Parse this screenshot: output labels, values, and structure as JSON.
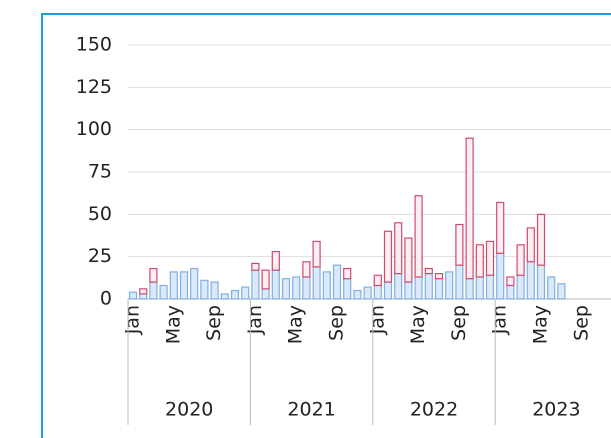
{
  "chart_data": {
    "type": "stacked_bar",
    "categories": [
      "Jan",
      null,
      null,
      null,
      "May",
      null,
      null,
      null,
      "Sep",
      null,
      null,
      null,
      "Jan",
      null,
      null,
      null,
      "May",
      null,
      null,
      null,
      "Sep",
      null,
      null,
      null,
      "Jan",
      null,
      null,
      null,
      "May",
      null,
      null,
      null,
      "Sep",
      null,
      null,
      null,
      "Jan",
      null,
      null,
      null,
      "May",
      null,
      null,
      null,
      "Sep",
      null,
      null,
      null
    ],
    "years": [
      "2020",
      "2021",
      "2022",
      "2023"
    ],
    "series": [
      {
        "color": "#7fb0e0",
        "values": [
          4,
          3,
          10,
          8,
          16,
          16,
          18,
          11,
          10,
          3,
          5,
          7,
          17,
          6,
          17,
          12,
          13,
          13,
          19,
          16,
          20,
          12,
          5,
          7,
          8,
          10,
          15,
          10,
          13,
          15,
          12,
          16,
          20,
          12,
          13,
          14,
          27,
          8,
          14,
          22,
          20,
          13,
          9,
          null,
          null,
          null,
          null,
          null
        ]
      },
      {
        "color": "#d04a6e",
        "values": [
          null,
          3,
          8,
          null,
          null,
          null,
          null,
          null,
          null,
          null,
          null,
          null,
          4,
          11,
          11,
          null,
          null,
          9,
          15,
          null,
          null,
          6,
          null,
          null,
          6,
          30,
          30,
          26,
          48,
          3,
          3,
          null,
          24,
          83,
          19,
          20,
          30,
          5,
          18,
          20,
          30,
          null,
          null,
          null,
          null,
          null,
          null,
          null
        ]
      }
    ],
    "ylim": [
      0,
      150
    ],
    "yticks": [
      0,
      25,
      50,
      75,
      100,
      125,
      150
    ],
    "grid": true
  }
}
